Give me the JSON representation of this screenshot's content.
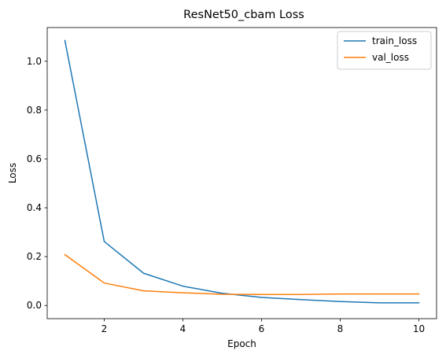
{
  "chart_data": {
    "type": "line",
    "title": "ResNet50_cbam Loss",
    "xlabel": "Epoch",
    "ylabel": "Loss",
    "x": [
      1,
      2,
      3,
      4,
      5,
      6,
      7,
      8,
      9,
      10
    ],
    "xlim": [
      0.55,
      10.45
    ],
    "ylim": [
      -0.054,
      1.138
    ],
    "xticks": [
      2,
      4,
      6,
      8,
      10
    ],
    "yticks": [
      0.0,
      0.2,
      0.4,
      0.6,
      0.8,
      1.0
    ],
    "xtick_labels": [
      "2",
      "4",
      "6",
      "8",
      "10"
    ],
    "ytick_labels": [
      "0.0",
      "0.2",
      "0.4",
      "0.6",
      "0.8",
      "1.0"
    ],
    "grid": false,
    "legend": "top-right",
    "series": [
      {
        "name": "train_loss",
        "color": "#1f77b4",
        "values": [
          1.085,
          0.262,
          0.132,
          0.079,
          0.05,
          0.033,
          0.024,
          0.016,
          0.011,
          0.011
        ]
      },
      {
        "name": "val_loss",
        "color": "#ff7f0e",
        "values": [
          0.208,
          0.092,
          0.06,
          0.052,
          0.046,
          0.045,
          0.045,
          0.047,
          0.047,
          0.047
        ]
      }
    ]
  }
}
